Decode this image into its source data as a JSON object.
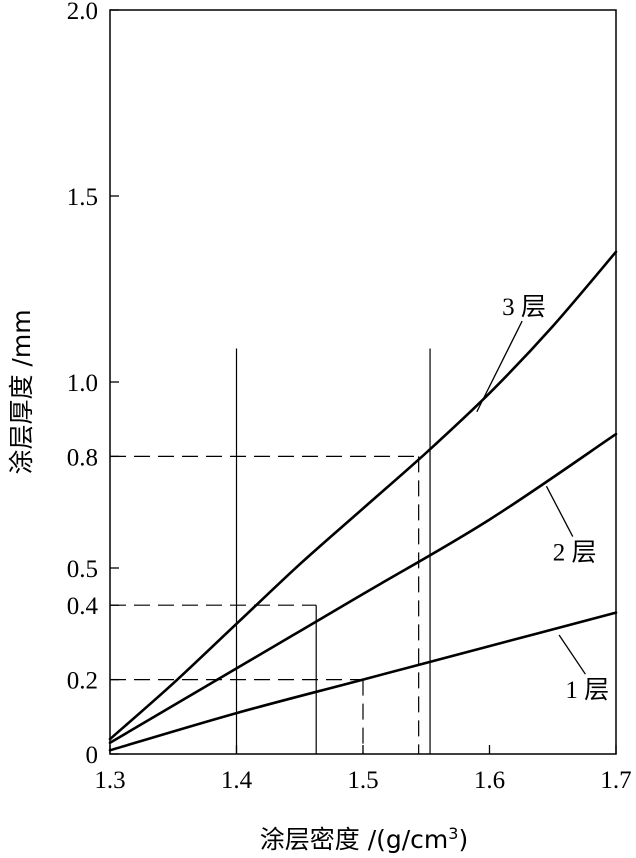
{
  "chart_data": {
    "type": "line",
    "xlabel": "涂层密度 /(g/cm",
    "xlabel_sup": "3",
    "xlabel_close": ")",
    "ylabel": "涂层厚度 /mm",
    "xlim": [
      1.3,
      1.7
    ],
    "ylim": [
      0,
      2.0
    ],
    "x_ticks": [
      {
        "value": 1.3,
        "label": "1.3"
      },
      {
        "value": 1.4,
        "label": "1.4"
      },
      {
        "value": 1.5,
        "label": "1.5"
      },
      {
        "value": 1.6,
        "label": "1.6"
      },
      {
        "value": 1.7,
        "label": "1.7"
      }
    ],
    "y_ticks": [
      {
        "value": 0,
        "label": "0"
      },
      {
        "value": 0.2,
        "label": "0.2"
      },
      {
        "value": 0.4,
        "label": "0.4"
      },
      {
        "value": 0.5,
        "label": "0.5"
      },
      {
        "value": 0.8,
        "label": "0.8"
      },
      {
        "value": 1.0,
        "label": "1.0"
      },
      {
        "value": 1.5,
        "label": "1.5"
      },
      {
        "value": 2.0,
        "label": "2.0"
      }
    ],
    "grid": false,
    "series": [
      {
        "name": "1 层",
        "x": [
          1.3,
          1.4,
          1.5,
          1.6,
          1.7
        ],
        "y": [
          0.01,
          0.11,
          0.2,
          0.29,
          0.38
        ]
      },
      {
        "name": "2 层",
        "x": [
          1.3,
          1.4,
          1.5,
          1.6,
          1.7
        ],
        "y": [
          0.03,
          0.23,
          0.43,
          0.63,
          0.86
        ]
      },
      {
        "name": "3 层",
        "x": [
          1.3,
          1.35,
          1.4,
          1.45,
          1.5,
          1.55,
          1.6,
          1.65,
          1.7
        ],
        "y": [
          0.04,
          0.19,
          0.35,
          0.51,
          0.66,
          0.81,
          0.97,
          1.15,
          1.35
        ]
      }
    ],
    "series_labels": [
      {
        "text": "1 层",
        "x": 1.66,
        "y": 0.15,
        "anchor_x": 1.655,
        "anchor_y": 0.32
      },
      {
        "text": "2 层",
        "x": 1.65,
        "y": 0.52,
        "anchor_x": 1.645,
        "anchor_y": 0.72
      },
      {
        "text": "3 层",
        "x": 1.61,
        "y": 1.18,
        "anchor_x": 1.59,
        "anchor_y": 0.92
      }
    ],
    "vertical_markers": [
      {
        "x": 1.4,
        "y_top": 1.09
      },
      {
        "x": 1.553,
        "y_top": 1.09
      }
    ],
    "annotations": [
      {
        "y": 0.8,
        "x": 1.544
      },
      {
        "y": 0.4,
        "x": 1.463
      },
      {
        "y": 0.2,
        "x": 1.5
      }
    ]
  }
}
